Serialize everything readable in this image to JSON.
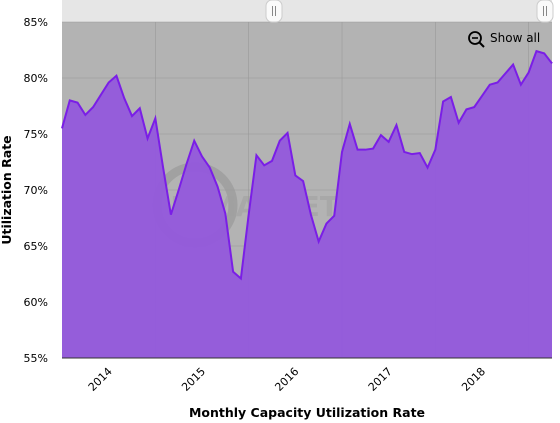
{
  "chart_data": {
    "type": "area",
    "xlabel": "Monthly Capacity Utilization Rate",
    "ylabel": "Utilization Rate",
    "button": "Show all",
    "watermark": [
      "STEEL",
      "MARKET",
      "UPDATE"
    ],
    "categories": [
      null,
      null,
      null,
      null,
      null,
      null,
      "2014",
      null,
      null,
      null,
      null,
      null,
      null,
      null,
      null,
      null,
      null,
      null,
      "2015",
      null,
      null,
      null,
      null,
      null,
      null,
      null,
      null,
      null,
      null,
      null,
      "2016",
      null,
      null,
      null,
      null,
      null,
      null,
      null,
      null,
      null,
      null,
      null,
      "2017",
      null,
      null,
      null,
      null,
      null,
      null,
      null,
      null,
      null,
      null,
      null,
      "2018",
      null,
      null,
      null,
      null,
      null,
      null,
      null,
      null,
      null
    ],
    "values": [
      75.5,
      78.0,
      77.8,
      76.7,
      77.4,
      78.5,
      79.6,
      80.2,
      78.2,
      76.6,
      77.3,
      74.6,
      76.4,
      72.0,
      67.8,
      70.0,
      72.3,
      74.4,
      73.0,
      72.0,
      70.3,
      67.9,
      62.7,
      62.1,
      67.8,
      73.1,
      72.2,
      72.6,
      74.4,
      75.1,
      71.3,
      70.8,
      67.8,
      65.4,
      67.0,
      67.7,
      73.4,
      75.9,
      73.6,
      73.6,
      73.7,
      74.9,
      74.3,
      75.8,
      73.4,
      73.2,
      73.3,
      72.0,
      73.6,
      77.9,
      78.3,
      76.0,
      77.2,
      77.4,
      78.4,
      79.4,
      79.6,
      80.4,
      81.2,
      79.4,
      80.5,
      82.4,
      82.2,
      81.3
    ],
    "color": "#9459dc",
    "line_color": "#7a1ee6",
    "plot_background": "#b3b3b3",
    "ylim": [
      55,
      85
    ],
    "yticks": [
      {
        "value": 55,
        "label": "55%"
      },
      {
        "value": 60,
        "label": "60%"
      },
      {
        "value": 65,
        "label": "65%"
      },
      {
        "value": 70,
        "label": "70%"
      },
      {
        "value": 75,
        "label": "75%"
      },
      {
        "value": 80,
        "label": "80%"
      },
      {
        "value": 85,
        "label": "85%"
      }
    ],
    "grid": true
  }
}
